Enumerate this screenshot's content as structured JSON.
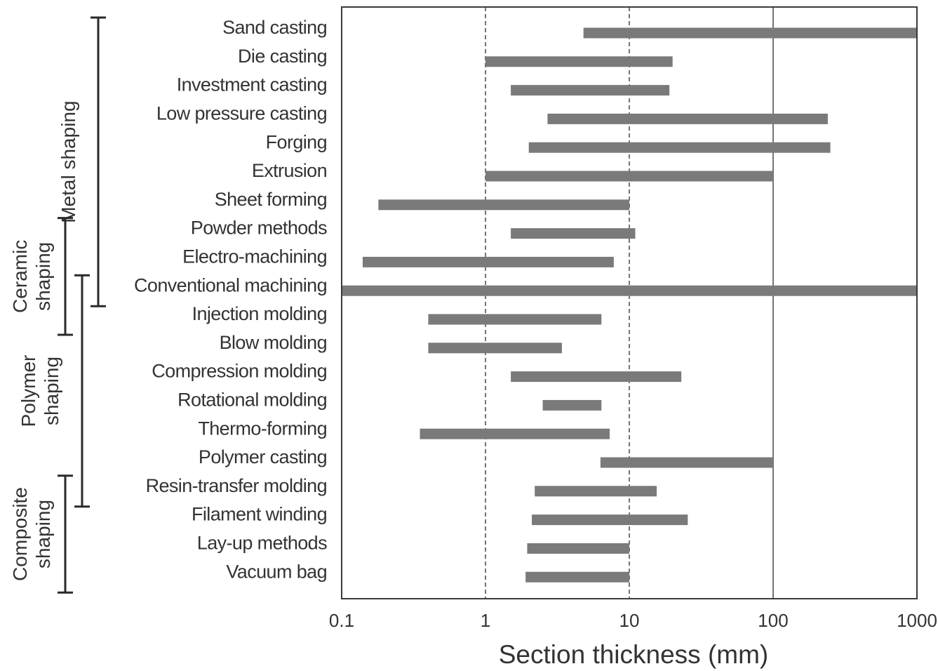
{
  "chart_data": {
    "type": "bar",
    "subtype": "horizontal-range (floating bars)",
    "xlabel": "Section thickness  (mm)",
    "ylabel": "",
    "xscale": "log",
    "xlim": [
      0.1,
      1000
    ],
    "xticks": [
      0.1,
      1,
      10,
      100,
      1000
    ],
    "xtick_labels": [
      "0.1",
      "1",
      "10",
      "100",
      "1000"
    ],
    "grid": "vertical lines at 1, 10, 100 (dashed at 1 and 10, solid at 100)",
    "bar_color": "#7a7a7a",
    "categories": [
      "Sand casting",
      "Die casting",
      "Investment casting",
      "Low pressure casting",
      "Forging",
      "Extrusion",
      "Sheet forming",
      "Powder methods",
      "Electro-machining",
      "Conventional machining",
      "Injection molding",
      "Blow molding",
      "Compression molding",
      "Rotational molding",
      "Thermo-forming",
      "Polymer casting",
      "Resin-transfer molding",
      "Filament winding",
      "Lay-up methods",
      "Vacuum bag"
    ],
    "ranges": [
      [
        4.8,
        1000
      ],
      [
        1.0,
        20
      ],
      [
        1.5,
        19
      ],
      [
        2.7,
        240
      ],
      [
        2.0,
        250
      ],
      [
        1.0,
        100
      ],
      [
        0.18,
        10
      ],
      [
        1.5,
        11
      ],
      [
        0.14,
        7.8
      ],
      [
        0.1,
        1000
      ],
      [
        0.4,
        6.4
      ],
      [
        0.4,
        3.4
      ],
      [
        1.5,
        23
      ],
      [
        2.5,
        6.4
      ],
      [
        0.35,
        7.3
      ],
      [
        6.3,
        100
      ],
      [
        2.2,
        15.5
      ],
      [
        2.1,
        25.5
      ],
      [
        1.95,
        10
      ],
      [
        1.9,
        10
      ]
    ],
    "groups": [
      {
        "label": "Metal shaping",
        "from": 0,
        "to": 9
      },
      {
        "label": "Ceramic shaping",
        "lines": [
          "Ceramic",
          "shaping"
        ],
        "from": 7,
        "to": 10
      },
      {
        "label": "Polymer shaping",
        "lines": [
          "Polymer",
          "shaping"
        ],
        "from": 9,
        "to": 16
      },
      {
        "label": "Composite shaping",
        "lines": [
          "Composite",
          "shaping"
        ],
        "from": 16,
        "to": 19
      }
    ]
  }
}
